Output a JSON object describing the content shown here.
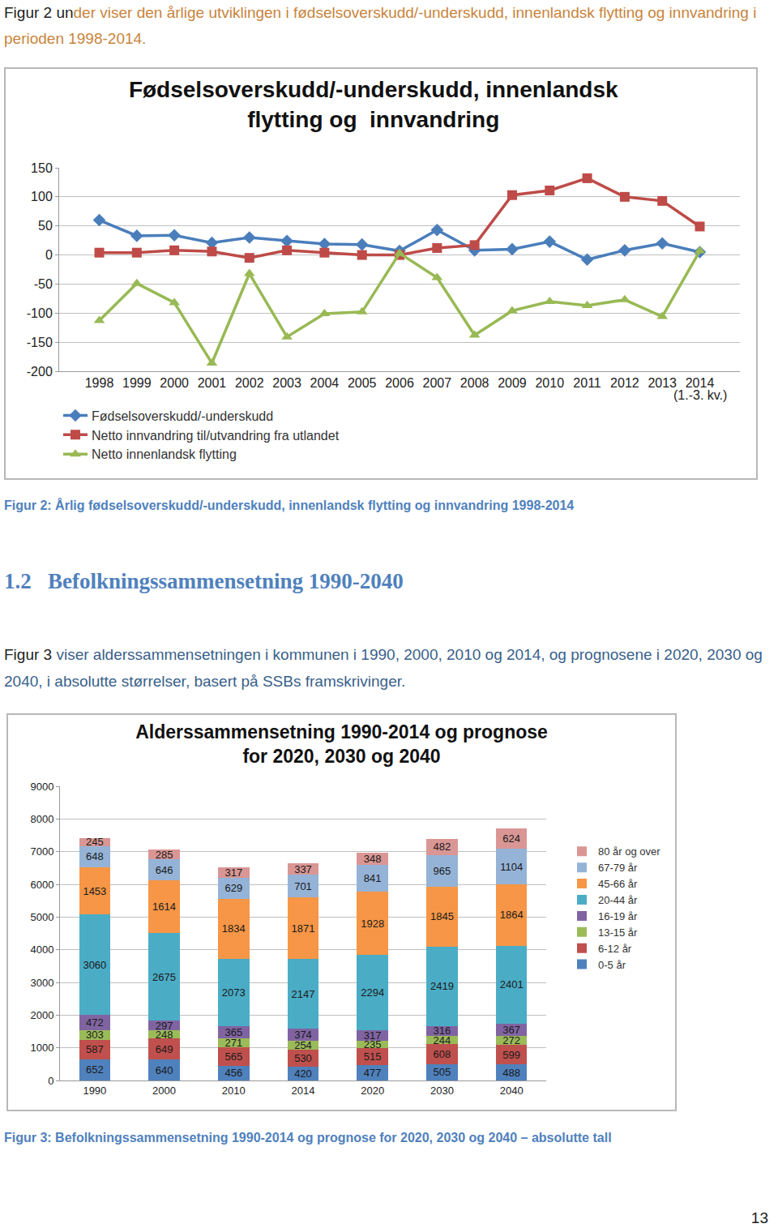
{
  "intro": {
    "lead": "Figur 2 un",
    "rest": "der viser den årlige utviklingen i fødselsoverskudd/-underskudd, innenlandsk flytting og innvandring i perioden 1998-2014."
  },
  "chart_data": [
    {
      "type": "line",
      "title": "Fødselsoverskudd/-underskudd, innenlandsk\nflytting og  innvandring",
      "categories": [
        "1998",
        "1999",
        "2000",
        "2001",
        "2002",
        "2003",
        "2004",
        "2005",
        "2006",
        "2007",
        "2008",
        "2009",
        "2010",
        "2011",
        "2012",
        "2013",
        "2014"
      ],
      "series": [
        {
          "name": "Fødselsoverskudd/-underskudd",
          "color": "#4a7ebb",
          "marker": "diamond",
          "line_style": "solid",
          "values": [
            60,
            33,
            34,
            21,
            30,
            24,
            19,
            18,
            7,
            43,
            8,
            10,
            23,
            -8,
            8,
            20,
            5
          ]
        },
        {
          "name": "Netto innvandring til/utvandring fra utlandet",
          "color": "#be4b48",
          "marker": "square",
          "line_style": "solid",
          "values": [
            4,
            4,
            8,
            6,
            -5,
            8,
            4,
            0,
            0,
            12,
            17,
            103,
            111,
            132,
            100,
            93,
            49
          ]
        },
        {
          "name": "Netto innenlandsk flytting",
          "color": "#98b954",
          "marker": "triangle-up",
          "line_style": "solid",
          "values": [
            -113,
            -49,
            -82,
            -186,
            -32,
            -141,
            -101,
            -98,
            3,
            -39,
            -138,
            -96,
            -80,
            -87,
            -77,
            -106,
            7
          ]
        }
      ],
      "annotations": [
        {
          "text": "(1.-3. kv.)",
          "category": "2014"
        }
      ],
      "ylim": [
        -200,
        150
      ],
      "yticks": [
        -200,
        -150,
        -100,
        -50,
        0,
        50,
        100,
        150
      ],
      "grid": true,
      "legend": "bottom"
    },
    {
      "type": "bar",
      "title": "Alderssammensetning 1990-2014 og prognose\nfor 2020, 2030 og 2040",
      "categories": [
        "1990",
        "2000",
        "2010",
        "2014",
        "2020",
        "2030",
        "2040"
      ],
      "stacked": true,
      "data_labels": true,
      "series": [
        {
          "name": "0-5 år",
          "color": "#4f81bd",
          "values": [
            652,
            640,
            456,
            420,
            477,
            505,
            488
          ]
        },
        {
          "name": "6-12 år",
          "color": "#c0504d",
          "values": [
            587,
            649,
            565,
            530,
            515,
            608,
            599
          ]
        },
        {
          "name": "13-15 år",
          "color": "#9bbb59",
          "values": [
            303,
            248,
            271,
            254,
            235,
            244,
            272
          ]
        },
        {
          "name": "16-19 år",
          "color": "#8064a2",
          "values": [
            472,
            297,
            365,
            374,
            317,
            316,
            367
          ]
        },
        {
          "name": "20-44 år",
          "color": "#4bacc6",
          "values": [
            3060,
            2675,
            2073,
            2147,
            2294,
            2419,
            2401
          ]
        },
        {
          "name": "45-66 år",
          "color": "#f79646",
          "values": [
            1453,
            1614,
            1834,
            1871,
            1928,
            1845,
            1864
          ]
        },
        {
          "name": "67-79 år",
          "color": "#95b3d7",
          "values": [
            648,
            646,
            629,
            701,
            841,
            965,
            1104
          ]
        },
        {
          "name": "80 år og over",
          "color": "#d99694",
          "values": [
            245,
            285,
            317,
            337,
            348,
            482,
            624
          ]
        }
      ],
      "ylim": [
        0,
        9000
      ],
      "yticks": [
        0,
        1000,
        2000,
        3000,
        4000,
        5000,
        6000,
        7000,
        8000,
        9000
      ],
      "grid": true,
      "legend": "right"
    }
  ],
  "captions": [
    "Figur 2: Årlig fødselsoverskudd/-underskudd, innenlandsk flytting og innvandring 1998-2014",
    "Figur 3: Befolkningssammensetning 1990-2014 og prognose for 2020, 2030 og 2040 – absolutte tall"
  ],
  "heading": "1.2   Befolkningssammensetning 1990-2040",
  "paragraph": {
    "lead": "Figur 3",
    "rest": " viser alderssammensetningen i kommunen i 1990, 2000, 2010 og 2014, og prognosene i 2020, 2030 og 2040, i absolutte størrelser, basert på SSBs framskrivinger."
  },
  "page_number": 13
}
